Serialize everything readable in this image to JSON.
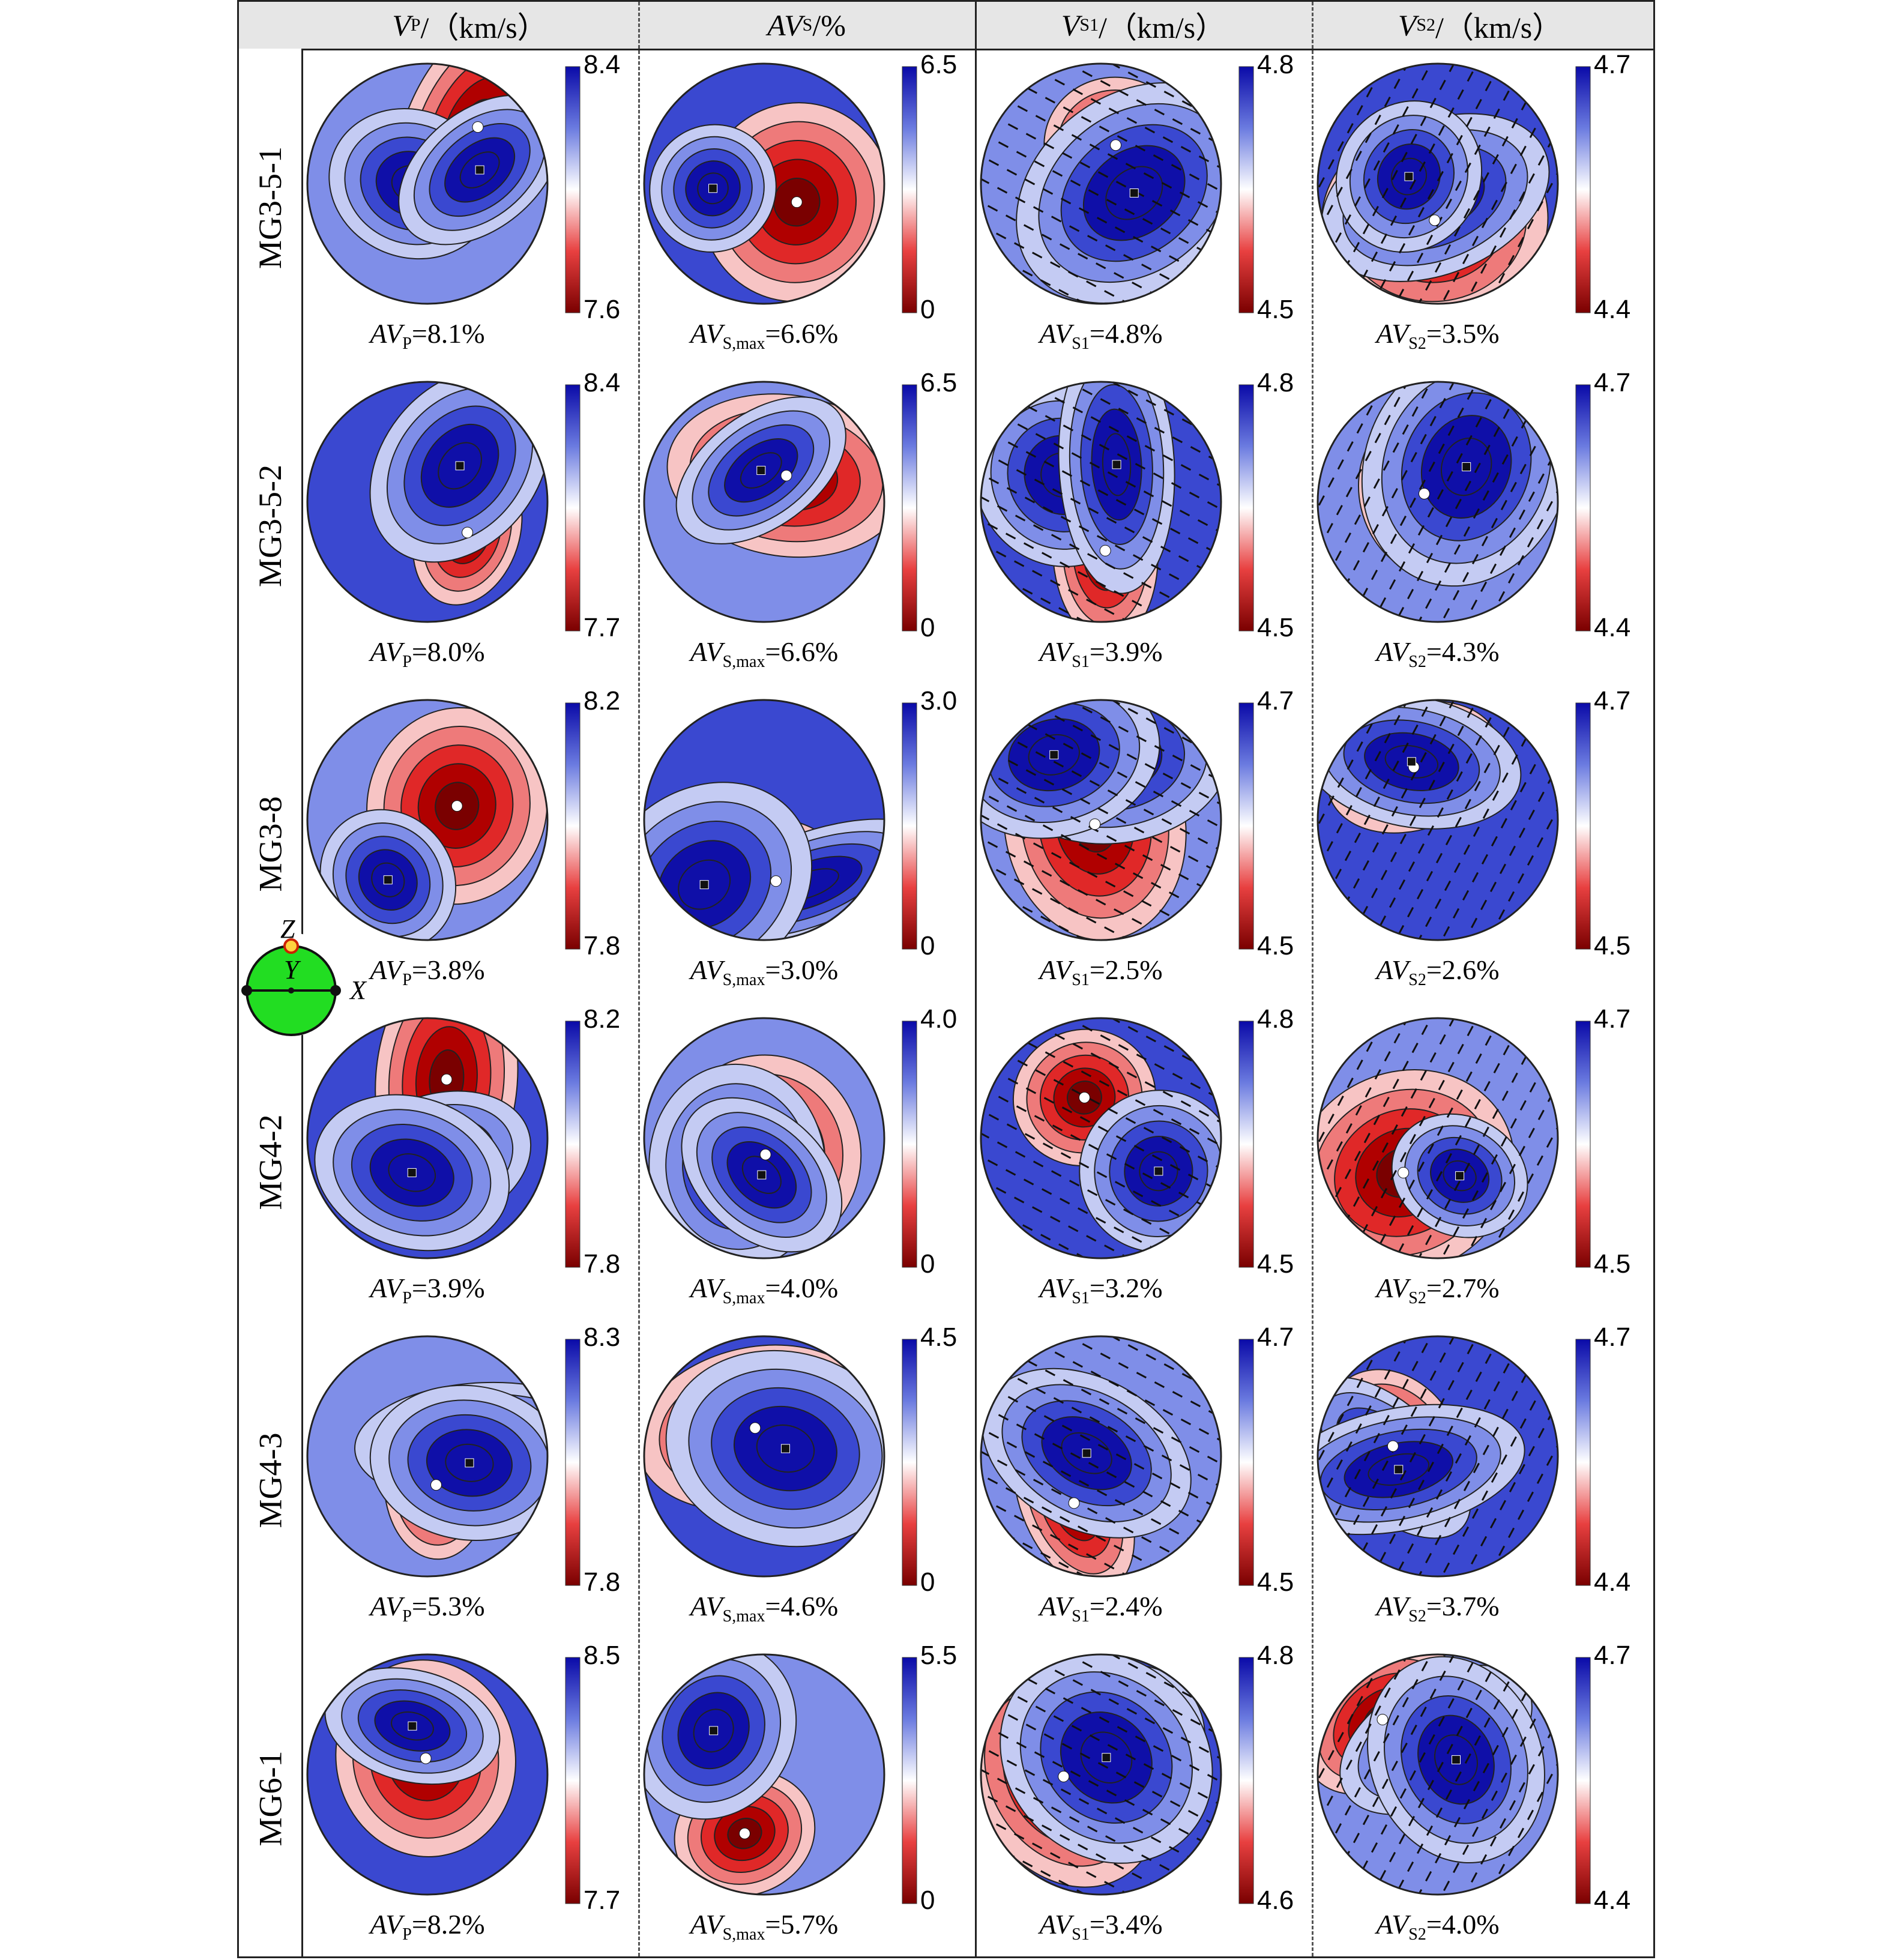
{
  "columns": [
    {
      "main": "V",
      "sub": "P",
      "suffix": "/（km/s）"
    },
    {
      "main": "AV",
      "sub": "S",
      "suffix": "/%"
    },
    {
      "main": "V",
      "sub": "S1",
      "suffix": "/（km/s）"
    },
    {
      "main": "V",
      "sub": "S2",
      "suffix": "/（km/s）"
    }
  ],
  "axes_legend": {
    "z": "Z",
    "y": "Y",
    "x": "X"
  },
  "colors": {
    "blue": "#1010b0",
    "red": "#8b0000",
    "white": "#ffffff",
    "green": "#22dd22"
  },
  "rows": [
    {
      "label": "MG3-5-1",
      "cells": [
        {
          "max": "8.4",
          "min": "7.6",
          "text_main": "AV",
          "text_sub": "P",
          "text_val": "=8.1%"
        },
        {
          "max": "6.5",
          "min": "0",
          "text_main": "AV",
          "text_sub": "S,max",
          "text_val": "=6.6%"
        },
        {
          "max": "4.8",
          "min": "4.5",
          "text_main": "AV",
          "text_sub": "S1",
          "text_val": "=4.8%"
        },
        {
          "max": "4.7",
          "min": "4.4",
          "text_main": "AV",
          "text_sub": "S2",
          "text_val": "=3.5%"
        }
      ]
    },
    {
      "label": "MG3-5-2",
      "cells": [
        {
          "max": "8.4",
          "min": "7.7",
          "text_main": "AV",
          "text_sub": "P",
          "text_val": "=8.0%"
        },
        {
          "max": "6.5",
          "min": "0",
          "text_main": "AV",
          "text_sub": "S,max",
          "text_val": "=6.6%"
        },
        {
          "max": "4.8",
          "min": "4.5",
          "text_main": "AV",
          "text_sub": "S1",
          "text_val": "=3.9%"
        },
        {
          "max": "4.7",
          "min": "4.4",
          "text_main": "AV",
          "text_sub": "S2",
          "text_val": "=4.3%"
        }
      ]
    },
    {
      "label": "MG3-8",
      "cells": [
        {
          "max": "8.2",
          "min": "7.8",
          "text_main": "AV",
          "text_sub": "P",
          "text_val": "=3.8%"
        },
        {
          "max": "3.0",
          "min": "0",
          "text_main": "AV",
          "text_sub": "S,max",
          "text_val": "=3.0%"
        },
        {
          "max": "4.7",
          "min": "4.5",
          "text_main": "AV",
          "text_sub": "S1",
          "text_val": "=2.5%"
        },
        {
          "max": "4.7",
          "min": "4.5",
          "text_main": "AV",
          "text_sub": "S2",
          "text_val": "=2.6%"
        }
      ]
    },
    {
      "label": "MG4-2",
      "cells": [
        {
          "max": "8.2",
          "min": "7.8",
          "text_main": "AV",
          "text_sub": "P",
          "text_val": "=3.9%"
        },
        {
          "max": "4.0",
          "min": "0",
          "text_main": "AV",
          "text_sub": "S,max",
          "text_val": "=4.0%"
        },
        {
          "max": "4.8",
          "min": "4.5",
          "text_main": "AV",
          "text_sub": "S1",
          "text_val": "=3.2%"
        },
        {
          "max": "4.7",
          "min": "4.5",
          "text_main": "AV",
          "text_sub": "S2",
          "text_val": "=2.7%"
        }
      ]
    },
    {
      "label": "MG4-3",
      "cells": [
        {
          "max": "8.3",
          "min": "7.8",
          "text_main": "AV",
          "text_sub": "P",
          "text_val": "=5.3%"
        },
        {
          "max": "4.5",
          "min": "0",
          "text_main": "AV",
          "text_sub": "S,max",
          "text_val": "=4.6%"
        },
        {
          "max": "4.7",
          "min": "4.5",
          "text_main": "AV",
          "text_sub": "S1",
          "text_val": "=2.4%"
        },
        {
          "max": "4.7",
          "min": "4.4",
          "text_main": "AV",
          "text_sub": "S2",
          "text_val": "=3.7%"
        }
      ]
    },
    {
      "label": "MG6-1",
      "cells": [
        {
          "max": "8.5",
          "min": "7.7",
          "text_main": "AV",
          "text_sub": "P",
          "text_val": "=8.2%"
        },
        {
          "max": "5.5",
          "min": "0",
          "text_main": "AV",
          "text_sub": "S,max",
          "text_val": "=5.7%"
        },
        {
          "max": "4.8",
          "min": "4.6",
          "text_main": "AV",
          "text_sub": "S1",
          "text_val": "=3.4%"
        },
        {
          "max": "4.7",
          "min": "4.4",
          "text_main": "AV",
          "text_sub": "S2",
          "text_val": "=4.0%"
        }
      ]
    }
  ]
}
